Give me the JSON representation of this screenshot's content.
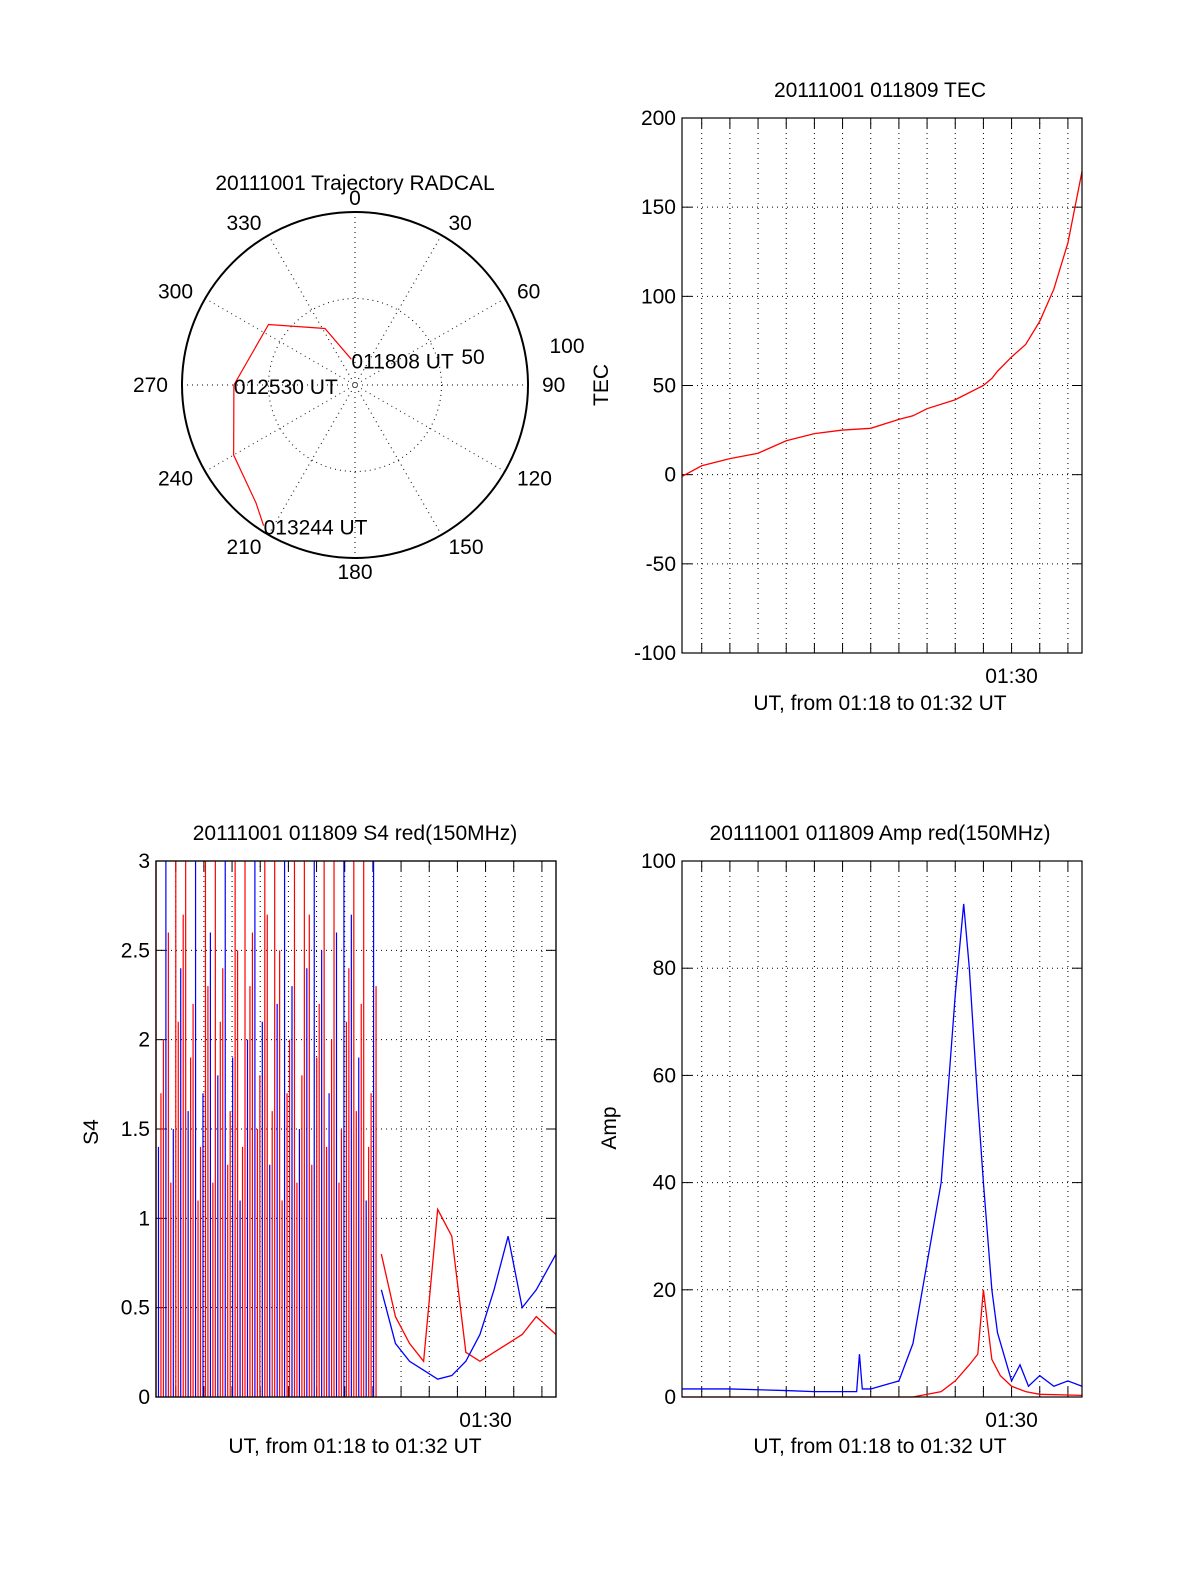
{
  "chart_data": [
    {
      "id": "polar",
      "type": "polar",
      "title": "20111001 Trajectory RADCAL",
      "azimuth_labels": [
        "0",
        "30",
        "60",
        "90",
        "120",
        "150",
        "180",
        "210",
        "240",
        "270",
        "300",
        "330"
      ],
      "radial_labels": [
        "50",
        "100"
      ],
      "rmax": 100,
      "trajectory": {
        "color": "#ff0000",
        "points": [
          [
            352,
            15
          ],
          [
            332,
            37
          ],
          [
            305,
            61
          ],
          [
            270,
            70
          ],
          [
            240,
            81
          ],
          [
            220,
            89
          ],
          [
            213,
            97
          ]
        ]
      },
      "annotations": [
        {
          "text": "011808 UT",
          "az": 352,
          "r": 15
        },
        {
          "text": "012530 UT",
          "az": 270,
          "r": 70
        },
        {
          "text": "013244 UT",
          "az": 213,
          "r": 97
        }
      ]
    },
    {
      "id": "tec",
      "type": "line",
      "title": "20111001 011809 TEC",
      "xlabel": "UT, from 01:18 to 01:32 UT",
      "ylabel": "TEC",
      "xlim": [
        78.3,
        92.5
      ],
      "ylim": [
        -100,
        200
      ],
      "yticks": [
        -100,
        -50,
        0,
        50,
        100,
        150,
        200
      ],
      "xtick_labels": [
        {
          "t": 90,
          "label": "01:30"
        }
      ],
      "series": [
        {
          "color": "#ff0000",
          "x": [
            78.3,
            79,
            80,
            81,
            82,
            83,
            84,
            85,
            86,
            86.5,
            87,
            88,
            89,
            89.3,
            89.5,
            90,
            90.5,
            91,
            91.5,
            92,
            92.5
          ],
          "y": [
            -1,
            5,
            9,
            12,
            19,
            23,
            25,
            26,
            31,
            33,
            37,
            42,
            50,
            54,
            58,
            66,
            73,
            86,
            104,
            130,
            170
          ]
        }
      ]
    },
    {
      "id": "s4",
      "type": "line",
      "title": "20111001 011809 S4 red(150MHz)",
      "xlabel": "UT, from 01:18 to 01:32 UT",
      "ylabel": "S4",
      "xlim": [
        78.3,
        92.5
      ],
      "ylim": [
        0,
        3
      ],
      "yticks": [
        0,
        0.5,
        1,
        1.5,
        2,
        2.5,
        3
      ],
      "ytick_labels": [
        "0",
        "0.5",
        "1",
        "1.5",
        "2",
        "2.5",
        "3"
      ],
      "xtick_labels": [
        {
          "t": 90,
          "label": "01:30"
        }
      ],
      "series": [
        {
          "color": "#ff0000",
          "x": [
            86.3,
            86.8,
            87.3,
            87.8,
            88.3,
            88.8,
            89.3,
            89.8,
            90.3,
            90.8,
            91.3,
            91.8,
            92.5
          ],
          "y": [
            0.8,
            0.45,
            0.3,
            0.2,
            1.05,
            0.9,
            0.25,
            0.2,
            0.25,
            0.3,
            0.35,
            0.45,
            0.35
          ]
        },
        {
          "color": "#0000ff",
          "x": [
            86.3,
            86.8,
            87.3,
            87.8,
            88.3,
            88.8,
            89.3,
            89.8,
            90.3,
            90.8,
            91.3,
            91.8,
            92.5
          ],
          "y": [
            0.6,
            0.3,
            0.2,
            0.15,
            0.1,
            0.12,
            0.2,
            0.35,
            0.6,
            0.9,
            0.5,
            0.6,
            0.8
          ]
        }
      ]
    },
    {
      "id": "amp",
      "type": "line",
      "title": "20111001 011809 Amp red(150MHz)",
      "xlabel": "UT, from 01:18 to 01:32 UT",
      "ylabel": "Amp",
      "xlim": [
        78.3,
        92.5
      ],
      "ylim": [
        0,
        100
      ],
      "yticks": [
        0,
        20,
        40,
        60,
        80,
        100
      ],
      "xtick_labels": [
        {
          "t": 90,
          "label": "01:30"
        }
      ],
      "series": [
        {
          "color": "#ff0000",
          "x": [
            78.3,
            84,
            86.5,
            87.5,
            88,
            88.5,
            88.8,
            89,
            89.3,
            89.6,
            90,
            90.5,
            91,
            92.5
          ],
          "y": [
            0,
            0,
            0,
            1,
            3,
            6,
            8,
            20,
            7,
            4,
            2,
            1,
            0.5,
            0.3
          ]
        },
        {
          "color": "#0000ff",
          "x": [
            78.3,
            80,
            82,
            83,
            84.5,
            84.6,
            84.7,
            85,
            86,
            86.5,
            87,
            87.5,
            88,
            88.3,
            88.5,
            88.8,
            89,
            89.3,
            89.5,
            90,
            90.3,
            90.6,
            91,
            91.5,
            92,
            92.5
          ],
          "y": [
            1.5,
            1.5,
            1.2,
            1,
            1,
            8,
            1.5,
            1.5,
            3,
            10,
            25,
            40,
            75,
            92,
            80,
            55,
            40,
            20,
            12,
            3,
            6,
            2,
            4,
            2,
            3,
            2
          ]
        }
      ]
    }
  ]
}
